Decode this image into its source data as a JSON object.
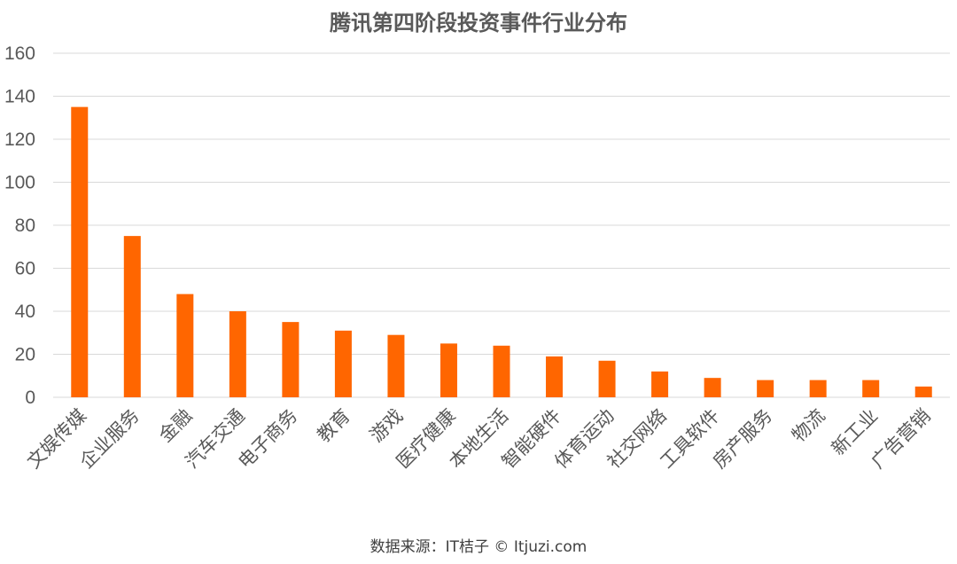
{
  "source_note": "数据来源：IT桔子 © Itjuzi.com",
  "colors": {
    "bar": "#ff6600",
    "grid": "#d9d9d9",
    "text": "#595959"
  },
  "chart_data": {
    "type": "bar",
    "title": "腾讯第四阶段投资事件行业分布",
    "xlabel": "",
    "ylabel": "",
    "ylim": [
      0,
      160
    ],
    "yticks": [
      0,
      20,
      40,
      60,
      80,
      100,
      120,
      140,
      160
    ],
    "grid": true,
    "legend": "none",
    "categories": [
      "文娱传媒",
      "企业服务",
      "金融",
      "汽车交通",
      "电子商务",
      "教育",
      "游戏",
      "医疗健康",
      "本地生活",
      "智能硬件",
      "体育运动",
      "社交网络",
      "工具软件",
      "房产服务",
      "物流",
      "新工业",
      "广告营销"
    ],
    "values": [
      135,
      75,
      48,
      40,
      35,
      31,
      29,
      25,
      24,
      19,
      17,
      12,
      9,
      8,
      8,
      8,
      5
    ]
  }
}
